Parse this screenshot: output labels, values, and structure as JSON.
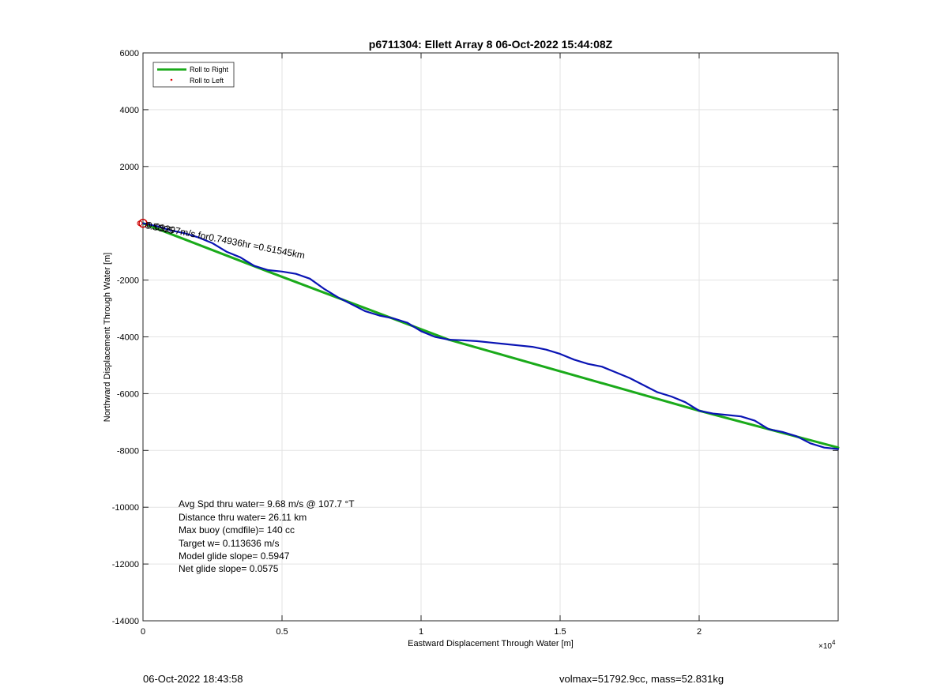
{
  "chart_data": {
    "type": "line",
    "title": "p6711304: Ellett Array 8 06-Oct-2022 15:44:08Z",
    "xlabel": "Eastward Displacement Through Water [m]",
    "ylabel": "Northward Displacement Through Water [m]",
    "x_exponent_label": "×10",
    "x_exponent_power": "4",
    "xlim": [
      0,
      25000
    ],
    "ylim": [
      -14000,
      6000
    ],
    "xticks": [
      0,
      5000,
      10000,
      15000,
      20000
    ],
    "xtick_labels": [
      "0",
      "0.5",
      "1",
      "1.5",
      "2"
    ],
    "yticks": [
      6000,
      4000,
      2000,
      0,
      -2000,
      -4000,
      -6000,
      -8000,
      -10000,
      -12000,
      -14000
    ],
    "ytick_labels": [
      "6000",
      "4000",
      "2000",
      "",
      "-2000",
      "-4000",
      "-6000",
      "-8000",
      "-10000",
      "-12000",
      "-14000"
    ],
    "grid": true,
    "legend_position": "top-left",
    "legend": [
      {
        "label": "Roll to Right",
        "marker": "line",
        "color": "#1aaa1a"
      },
      {
        "label": "Roll to Left",
        "marker": "dot",
        "color": "#dd0000"
      }
    ],
    "series": [
      {
        "name": "Roll to Right",
        "color": "#1aaa1a",
        "x": [
          0,
          4500,
          11000,
          20000,
          25000
        ],
        "y": [
          0,
          -1700,
          -4100,
          -6600,
          -7900
        ]
      },
      {
        "color": "#0a14b4",
        "x": [
          0,
          500,
          1000,
          1500,
          2000,
          2500,
          3000,
          3500,
          4000,
          4500,
          5000,
          5500,
          6000,
          6500,
          7000,
          7500,
          8000,
          8500,
          9000,
          9500,
          10000,
          10500,
          11000,
          11500,
          12000,
          12500,
          13000,
          13500,
          14000,
          14500,
          15000,
          15500,
          16000,
          16500,
          17000,
          17500,
          18000,
          18500,
          19000,
          19500,
          20000,
          20500,
          21000,
          21500,
          22000,
          22500,
          23000,
          23500,
          24000,
          24500,
          25000
        ],
        "y": [
          0,
          -100,
          -250,
          -350,
          -500,
          -700,
          -1000,
          -1200,
          -1500,
          -1650,
          -1700,
          -1780,
          -1950,
          -2300,
          -2600,
          -2850,
          -3100,
          -3250,
          -3350,
          -3500,
          -3800,
          -4000,
          -4100,
          -4120,
          -4150,
          -4200,
          -4250,
          -4300,
          -4350,
          -4450,
          -4600,
          -4800,
          -4950,
          -5050,
          -5250,
          -5450,
          -5700,
          -5950,
          -6100,
          -6300,
          -6600,
          -6700,
          -6750,
          -6800,
          -6950,
          -7250,
          -7350,
          -7500,
          -7750,
          -7900,
          -7950
        ]
      }
    ],
    "start_marker": {
      "x": 0,
      "y": 0,
      "color": "#cc0000"
    },
    "segment_label": "0.09297m/s for0.74936hr =0.51545km",
    "overlay_label": "0.5305",
    "stats": [
      "Avg Spd thru water=  9.68 m/s @ 107.7 °T",
      "Distance thru water= 26.11 km",
      "Max buoy (cmdfile)= 140 cc",
      "Target w= 0.113636 m/s",
      "Model glide slope= 0.5947",
      "Net glide slope= 0.0575"
    ]
  },
  "footer": {
    "timestamp": "06-Oct-2022 18:43:58",
    "info": "volmax=51792.9cc, mass=52.831kg"
  }
}
